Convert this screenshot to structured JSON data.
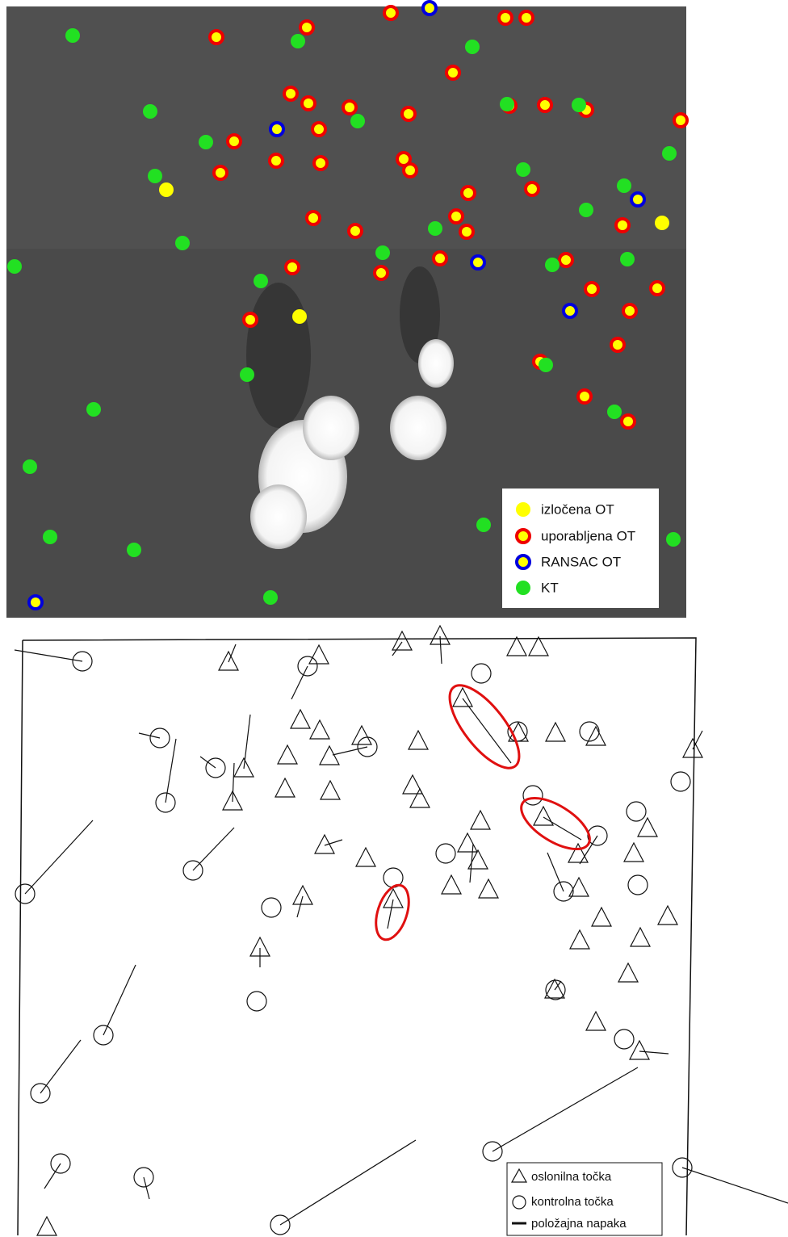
{
  "top_legend": {
    "items": [
      "izločena OT",
      "uporabljena OT",
      "RANSAC OT",
      "KT"
    ]
  },
  "bottom_legend": {
    "items": [
      "oslonilna točka",
      "kontrolna točka",
      "položajna napaka"
    ]
  }
}
